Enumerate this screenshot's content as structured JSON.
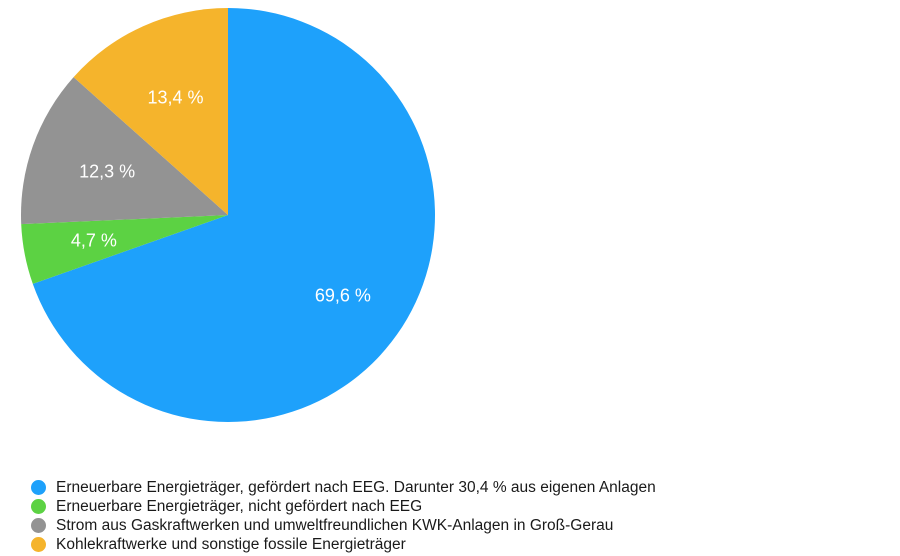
{
  "chart_data": {
    "type": "pie",
    "title": "",
    "start_angle_deg": 0,
    "direction": "clockwise",
    "slices": [
      {
        "label": "Erneuerbare Energieträger, gefördert nach EEG. Darunter 30,4 % aus eigenen Anlagen",
        "value": 69.6,
        "display": "69,6 %",
        "color": "#1ea1fb"
      },
      {
        "label": "Erneuerbare Energieträger, nicht gefördert nach EEG",
        "value": 4.7,
        "display": "4,7 %",
        "color": "#5cd243"
      },
      {
        "label": "Strom aus Gaskraftwerken und umweltfreundlichen KWK-Anlagen in Groß-Gerau",
        "value": 12.3,
        "display": "12,3 %",
        "color": "#939393"
      },
      {
        "label": "Kohlekraftwerke und sonstige fossile Energieträger",
        "value": 13.4,
        "display": "13,4 %",
        "color": "#f5b42c"
      }
    ],
    "legend_position": "bottom-left"
  },
  "legend": {
    "items": [
      {
        "label": "Erneuerbare Energieträger, gefördert nach EEG. Darunter 30,4 % aus eigenen Anlagen",
        "color": "#1ea1fb"
      },
      {
        "label": "Erneuerbare Energieträger, nicht gefördert nach EEG",
        "color": "#5cd243"
      },
      {
        "label": "Strom aus Gaskraftwerken und umweltfreundlichen KWK-Anlagen in Groß-Gerau",
        "color": "#939393"
      },
      {
        "label": "Kohlekraftwerke und sonstige fossile Energieträger",
        "color": "#f5b42c"
      }
    ]
  }
}
